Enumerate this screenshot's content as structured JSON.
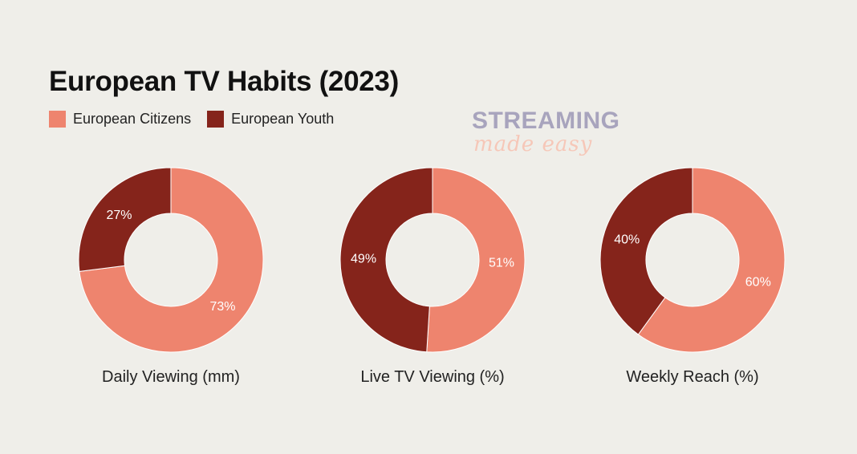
{
  "chart_data": {
    "type": "pie",
    "title": "European TV Habits (2023)",
    "legend": [
      {
        "name": "European Citizens",
        "color": "#ee846e"
      },
      {
        "name": "European Youth",
        "color": "#85241b"
      }
    ],
    "charts": [
      {
        "caption": "Daily Viewing (mm)",
        "slices": [
          {
            "series": "European Citizens",
            "value": 73,
            "label": "73%"
          },
          {
            "series": "European Youth",
            "value": 27,
            "label": "27%"
          }
        ]
      },
      {
        "caption": "Live TV Viewing (%)",
        "slices": [
          {
            "series": "European Citizens",
            "value": 51,
            "label": "51%"
          },
          {
            "series": "European Youth",
            "value": 49,
            "label": "49%"
          }
        ]
      },
      {
        "caption": "Weekly Reach (%)",
        "slices": [
          {
            "series": "European Citizens",
            "value": 60,
            "label": "60%"
          },
          {
            "series": "European Youth",
            "value": 40,
            "label": "40%"
          }
        ]
      }
    ]
  },
  "logo": {
    "main": "STREAMING",
    "sub": "made easy"
  }
}
